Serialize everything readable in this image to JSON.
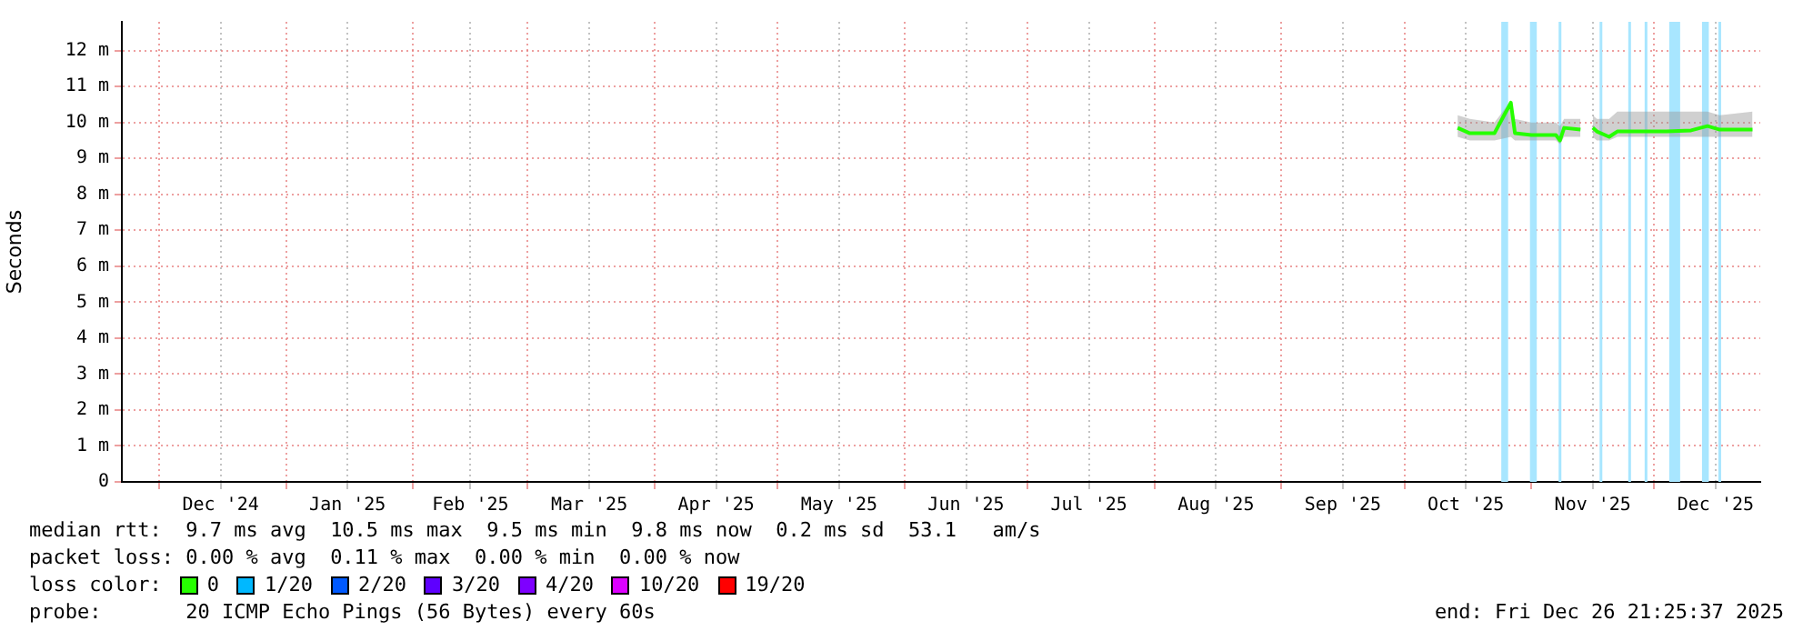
{
  "chart_data": {
    "type": "line",
    "ylabel": "Seconds",
    "legend": "bottom",
    "legend_title": "loss color:",
    "grid": true,
    "marker": "none",
    "line_style": "solid",
    "xlim": [
      "2024-11-21T21:25",
      "2025-12-26T21:25"
    ],
    "xticks": [
      {
        "value": "2024-12-01",
        "label": null
      },
      {
        "value": "2024-12-16",
        "label": "Dec '24"
      },
      {
        "value": "2025-01-01",
        "label": null
      },
      {
        "value": "2025-01-16",
        "label": "Jan '25"
      },
      {
        "value": "2025-02-01",
        "label": null
      },
      {
        "value": "2025-02-15",
        "label": "Feb '25"
      },
      {
        "value": "2025-03-01",
        "label": null
      },
      {
        "value": "2025-03-16",
        "label": "Mar '25"
      },
      {
        "value": "2025-04-01",
        "label": null
      },
      {
        "value": "2025-04-16",
        "label": "Apr '25"
      },
      {
        "value": "2025-05-01",
        "label": null
      },
      {
        "value": "2025-05-16",
        "label": "May '25"
      },
      {
        "value": "2025-06-01",
        "label": null
      },
      {
        "value": "2025-06-16",
        "label": "Jun '25"
      },
      {
        "value": "2025-07-01",
        "label": null
      },
      {
        "value": "2025-07-16",
        "label": "Jul '25"
      },
      {
        "value": "2025-08-01",
        "label": null
      },
      {
        "value": "2025-08-16",
        "label": "Aug '25"
      },
      {
        "value": "2025-09-01",
        "label": null
      },
      {
        "value": "2025-09-16",
        "label": "Sep '25"
      },
      {
        "value": "2025-10-01",
        "label": null
      },
      {
        "value": "2025-10-16",
        "label": "Oct '25"
      },
      {
        "value": "2025-11-01",
        "label": null
      },
      {
        "value": "2025-11-16",
        "label": "Nov '25"
      },
      {
        "value": "2025-12-01",
        "label": null
      },
      {
        "value": "2025-12-16",
        "label": "Dec '25"
      }
    ],
    "ylim": [
      0,
      12.8
    ],
    "yticks": [
      0,
      {
        "value": 1,
        "label": "1 m"
      },
      {
        "value": 2,
        "label": "2 m"
      },
      {
        "value": 3,
        "label": "3 m"
      },
      {
        "value": 4,
        "label": "4 m"
      },
      {
        "value": 5,
        "label": "5 m"
      },
      {
        "value": 6,
        "label": "6 m"
      },
      {
        "value": 7,
        "label": "7 m"
      },
      {
        "value": 8,
        "label": "8 m"
      },
      {
        "value": 9,
        "label": "9 m"
      },
      {
        "value": 10,
        "label": "10 m"
      },
      {
        "value": 11,
        "label": "11 m"
      },
      {
        "value": 12,
        "label": "12 m"
      }
    ],
    "x": [
      "2025-10-14",
      "2025-10-17",
      "2025-10-23",
      "2025-10-27",
      "2025-10-28",
      "2025-11-01",
      "2025-11-07",
      "2025-11-08",
      "2025-11-09",
      "2025-11-13",
      "2025-11-14",
      "2025-11-16",
      "2025-11-17",
      "2025-11-20",
      "2025-11-22",
      "2025-11-27",
      "2025-12-04",
      "2025-12-10",
      "2025-12-14",
      "2025-12-17",
      "2025-12-25"
    ],
    "series": [
      {
        "name": "0",
        "color": "#26ff00",
        "values": [
          9.85,
          9.7,
          9.7,
          10.55,
          9.7,
          9.65,
          9.65,
          9.5,
          9.85,
          9.8,
          null,
          9.85,
          9.75,
          9.6,
          9.75,
          9.75,
          9.75,
          9.78,
          9.9,
          9.8,
          9.8
        ],
        "lower": [
          9.6,
          9.5,
          9.5,
          9.6,
          9.5,
          9.5,
          9.5,
          9.4,
          9.6,
          9.6,
          null,
          9.6,
          9.5,
          9.5,
          9.6,
          9.6,
          9.6,
          9.6,
          9.6,
          9.6,
          9.6
        ],
        "upper": [
          10.2,
          10.1,
          10,
          10.6,
          10.1,
          10,
          10,
          9.9,
          10.1,
          10.1,
          null,
          10.2,
          10.1,
          10.1,
          10.3,
          10.3,
          10.3,
          10.3,
          10.3,
          10.2,
          10.3
        ]
      },
      {
        "name": "1/20",
        "color": "#00b8ff",
        "values": [
          null,
          null,
          null,
          null,
          null,
          null,
          null,
          null,
          null,
          null,
          null,
          null,
          null,
          null,
          null,
          null,
          null,
          null,
          null,
          null,
          null
        ]
      },
      {
        "name": "2/20",
        "color": "#0059ff",
        "values": [
          null,
          null,
          null,
          null,
          null,
          null,
          null,
          null,
          null,
          null,
          null,
          null,
          null,
          null,
          null,
          null,
          null,
          null,
          null,
          null,
          null
        ]
      },
      {
        "name": "3/20",
        "color": "#5e00ff",
        "values": [
          null,
          null,
          null,
          null,
          null,
          null,
          null,
          null,
          null,
          null,
          null,
          null,
          null,
          null,
          null,
          null,
          null,
          null,
          null,
          null,
          null
        ]
      },
      {
        "name": "4/20",
        "color": "#7e00ff",
        "values": [
          null,
          null,
          null,
          null,
          null,
          null,
          null,
          null,
          null,
          null,
          null,
          null,
          null,
          null,
          null,
          null,
          null,
          null,
          null,
          null,
          null
        ]
      },
      {
        "name": "10/20",
        "color": "#dd00ff",
        "values": [
          null,
          null,
          null,
          null,
          null,
          null,
          null,
          null,
          null,
          null,
          null,
          null,
          null,
          null,
          null,
          null,
          null,
          null,
          null,
          null,
          null
        ]
      },
      {
        "name": "19/20",
        "color": "#ff0000",
        "values": [
          null,
          null,
          null,
          null,
          null,
          null,
          null,
          null,
          null,
          null,
          null,
          null,
          null,
          null,
          null,
          null,
          null,
          null,
          null,
          null,
          null
        ]
      }
    ],
    "bands": [
      {
        "axis": "x",
        "from": "2025-10-25",
        "to": "2025-10-26",
        "color": "#a8e6ff"
      },
      {
        "axis": "x",
        "from": "2025-11-01",
        "to": "2025-11-02",
        "color": "#a8e6ff"
      },
      {
        "axis": "x",
        "from": "2025-12-05",
        "to": "2025-12-07",
        "color": "#a8e6ff"
      },
      {
        "axis": "x",
        "from": "2025-12-13",
        "to": "2025-12-14",
        "color": "#a8e6ff"
      }
    ],
    "ref_lines": [
      {
        "axis": "x",
        "value": "2025-11-08",
        "color": "#a8e6ff"
      },
      {
        "axis": "x",
        "value": "2025-11-18",
        "color": "#a8e6ff"
      },
      {
        "axis": "x",
        "value": "2025-11-25",
        "color": "#a8e6ff"
      },
      {
        "axis": "x",
        "value": "2025-11-29",
        "color": "#a8e6ff"
      },
      {
        "axis": "x",
        "value": "2025-12-17",
        "color": "#a8e6ff"
      }
    ],
    "annotations": [
      "median rtt:  9.7 ms avg  10.5 ms max  9.5 ms min  9.8 ms now  0.2 ms sd  53.1   am/s",
      "packet loss: 0.00 % avg  0.11 % max  0.00 % min  0.00 % now",
      "probe:       20 ICMP Echo Pings (56 Bytes) every 60s",
      "end: Fri Dec 26 21:25:37 2025"
    ]
  }
}
